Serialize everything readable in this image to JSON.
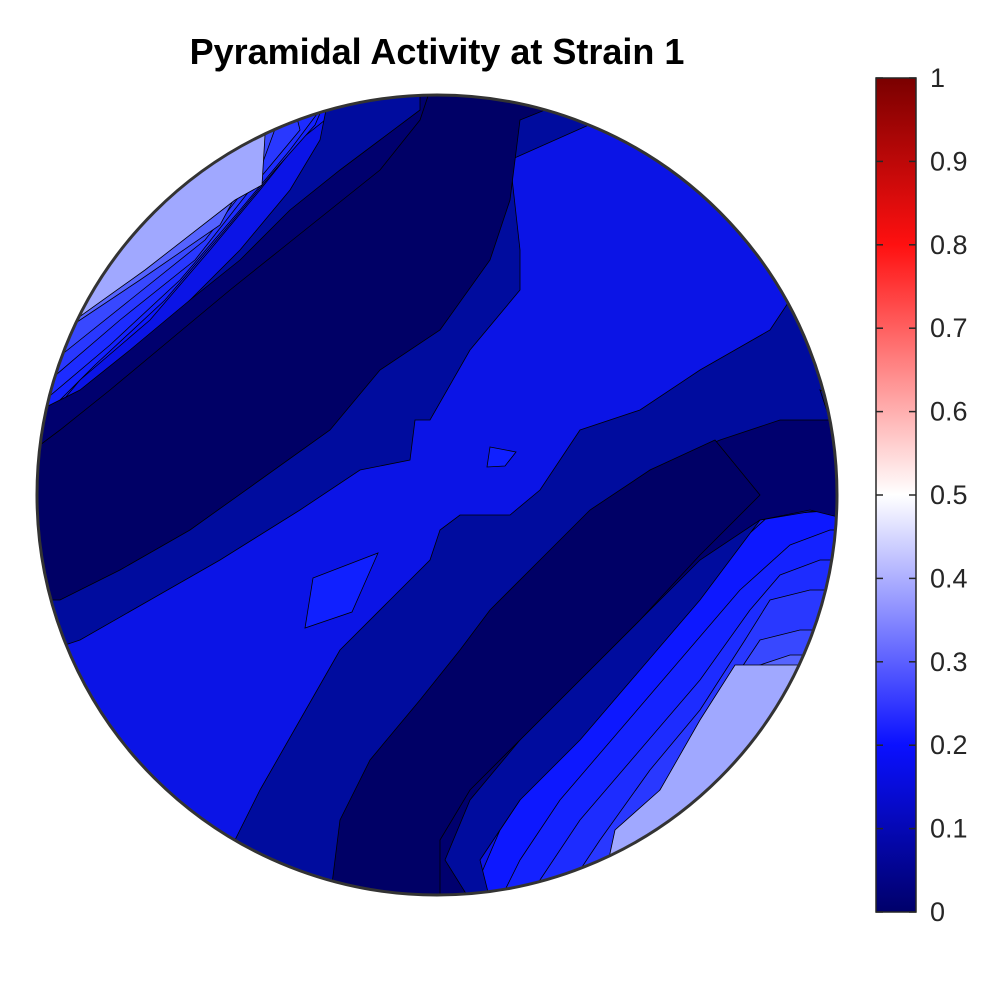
{
  "chart_data": {
    "type": "heatmap",
    "title": "Pyramidal Activity at Strain 1",
    "projection": "circular pole figure (contour)",
    "value_range": [
      0,
      1
    ],
    "colormap": {
      "name": "blue-white-red",
      "stops": [
        {
          "value": 0.0,
          "color": "#00006a"
        },
        {
          "value": 0.2,
          "color": "#0a10ff"
        },
        {
          "value": 0.5,
          "color": "#ffffff"
        },
        {
          "value": 0.8,
          "color": "#ff1010"
        },
        {
          "value": 1.0,
          "color": "#7a0000"
        }
      ]
    },
    "colorbar": {
      "placement": "right",
      "ticks": [
        {
          "value": 0,
          "label": "0"
        },
        {
          "value": 0.1,
          "label": "0.1"
        },
        {
          "value": 0.2,
          "label": "0.2"
        },
        {
          "value": 0.3,
          "label": "0.3"
        },
        {
          "value": 0.4,
          "label": "0.4"
        },
        {
          "value": 0.5,
          "label": "0.5"
        },
        {
          "value": 0.6,
          "label": "0.6"
        },
        {
          "value": 0.7,
          "label": "0.7"
        },
        {
          "value": 0.8,
          "label": "0.8"
        },
        {
          "value": 0.9,
          "label": "0.9"
        },
        {
          "value": 1,
          "label": "1"
        }
      ]
    },
    "contour_levels": [
      0.04,
      0.08,
      0.12,
      0.16,
      0.2,
      0.24,
      0.28,
      0.32,
      0.36,
      0.4
    ],
    "regions": [
      {
        "label": "central band",
        "value": 0.15
      },
      {
        "label": "upper-left low lobe",
        "value": 0.02
      },
      {
        "label": "lower-right low lobe",
        "value": 0.02
      },
      {
        "label": "upper-left edge maximum",
        "value": 0.38
      },
      {
        "label": "lower-right edge maximum",
        "value": 0.38
      }
    ]
  }
}
